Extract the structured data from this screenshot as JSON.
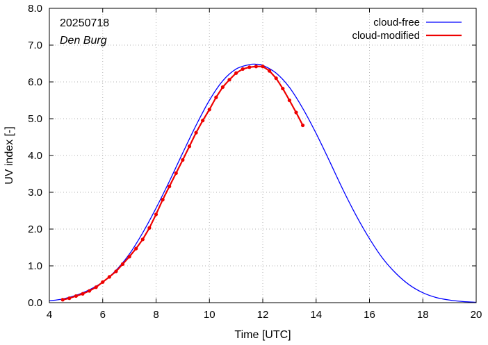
{
  "chart_data": {
    "type": "line",
    "xlabel": "Time  [UTC]",
    "ylabel": "UV index  [-]",
    "xlim": [
      4,
      20
    ],
    "ylim": [
      0,
      8
    ],
    "grid": true,
    "legend_position": "top-right",
    "x_ticks": [
      "4",
      "6",
      "8",
      "10",
      "12",
      "14",
      "16",
      "18",
      "20"
    ],
    "y_ticks": [
      "0.0",
      "1.0",
      "2.0",
      "3.0",
      "4.0",
      "5.0",
      "6.0",
      "7.0",
      "8.0"
    ],
    "annotations": {
      "date": "20250718",
      "location": "Den Burg"
    },
    "series": [
      {
        "name": "cloud-free",
        "color": "#0000ff",
        "style": "line",
        "x": [
          4.0,
          4.5,
          5.0,
          5.5,
          6.0,
          6.5,
          7.0,
          7.5,
          8.0,
          8.5,
          9.0,
          9.5,
          10.0,
          10.5,
          11.0,
          11.5,
          11.75,
          12.0,
          12.5,
          13.0,
          13.5,
          14.0,
          14.5,
          15.0,
          15.5,
          16.0,
          16.5,
          17.0,
          17.5,
          18.0,
          18.5,
          19.0,
          19.5,
          20.0
        ],
        "y": [
          0.05,
          0.1,
          0.2,
          0.35,
          0.56,
          0.88,
          1.32,
          1.9,
          2.57,
          3.3,
          4.07,
          4.82,
          5.5,
          6.03,
          6.35,
          6.47,
          6.48,
          6.45,
          6.24,
          5.85,
          5.28,
          4.6,
          3.85,
          3.08,
          2.37,
          1.74,
          1.2,
          0.79,
          0.48,
          0.27,
          0.14,
          0.07,
          0.03,
          0.01
        ]
      },
      {
        "name": "cloud-modified",
        "color": "#ee0000",
        "style": "line+points",
        "x": [
          4.5,
          4.75,
          5.0,
          5.25,
          5.5,
          5.75,
          6.0,
          6.25,
          6.5,
          6.75,
          7.0,
          7.25,
          7.5,
          7.75,
          8.0,
          8.25,
          8.5,
          8.75,
          9.0,
          9.25,
          9.5,
          9.75,
          10.0,
          10.25,
          10.5,
          10.75,
          11.0,
          11.25,
          11.5,
          11.75,
          12.0,
          12.25,
          12.5,
          12.75,
          13.0,
          13.25,
          13.5
        ],
        "y": [
          0.08,
          0.12,
          0.18,
          0.24,
          0.32,
          0.42,
          0.56,
          0.7,
          0.85,
          1.05,
          1.25,
          1.47,
          1.72,
          2.03,
          2.4,
          2.8,
          3.16,
          3.52,
          3.88,
          4.25,
          4.62,
          4.95,
          5.25,
          5.58,
          5.86,
          6.06,
          6.24,
          6.35,
          6.4,
          6.42,
          6.42,
          6.3,
          6.1,
          5.82,
          5.5,
          5.17,
          4.82
        ]
      }
    ]
  }
}
